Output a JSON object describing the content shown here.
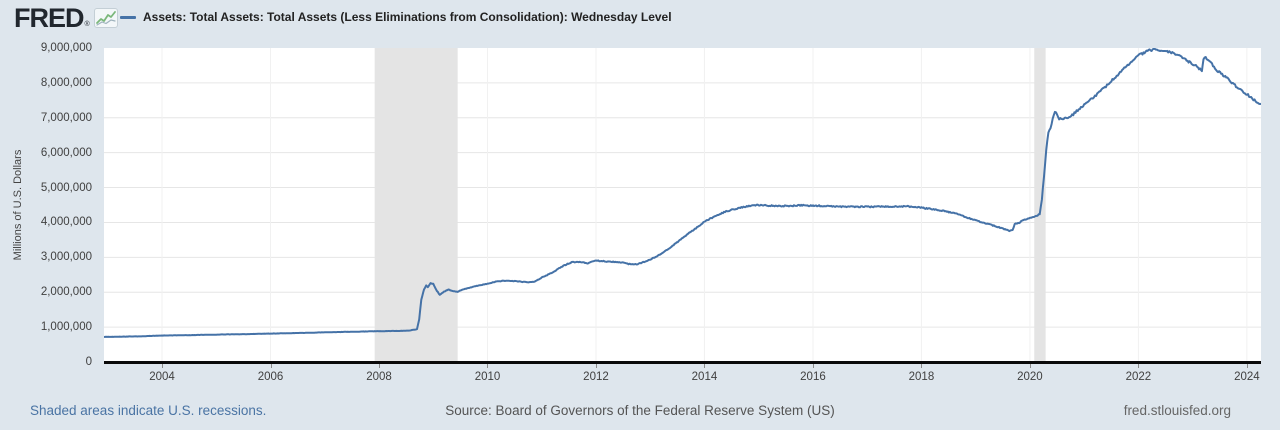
{
  "header": {
    "logo_text": "FRED",
    "logo_reg": "®",
    "series_label": "Assets: Total Assets: Total Assets (Less Eliminations from Consolidation): Wednesday Level"
  },
  "footer": {
    "recession_note": "Shaded areas indicate U.S. recessions.",
    "source": "Source: Board of Governors of the Federal Reserve System (US)",
    "site": "fred.stlouisfed.org"
  },
  "colors": {
    "page_background": "#dee6ed",
    "plot_background": "#ffffff",
    "line": "#4572a7",
    "gridline": "#e6e6e6",
    "vertical_gridline": "#f1f1f1",
    "recession_band": "#e4e4e4",
    "axis": "#0a0a0a",
    "logo_sparkline": "#7ab77a"
  },
  "chart_data": {
    "type": "line",
    "title": "Assets: Total Assets: Total Assets (Less Eliminations from Consolidation): Wednesday Level",
    "xlabel": "",
    "ylabel": "Millions of U.S. Dollars",
    "legend_position": "top-left",
    "grid": true,
    "xlim": [
      2002.93,
      2024.26
    ],
    "ylim": [
      0,
      9000000
    ],
    "x_ticks": [
      2004,
      2006,
      2008,
      2010,
      2012,
      2014,
      2016,
      2018,
      2020,
      2022,
      2024
    ],
    "y_ticks": [
      0,
      1000000,
      2000000,
      3000000,
      4000000,
      5000000,
      6000000,
      7000000,
      8000000,
      9000000
    ],
    "recessions": [
      [
        2007.92,
        2009.45
      ],
      [
        2020.08,
        2020.29
      ]
    ],
    "series": [
      {
        "name": "Assets: Total Assets: Total Assets (Less Eliminations from Consolidation): Wednesday Level",
        "units": "Millions of U.S. Dollars",
        "points": [
          [
            2002.93,
            719000
          ],
          [
            2003.2,
            725000
          ],
          [
            2003.6,
            735000
          ],
          [
            2004.0,
            758000
          ],
          [
            2004.5,
            770000
          ],
          [
            2005.0,
            786000
          ],
          [
            2005.5,
            797000
          ],
          [
            2006.0,
            815000
          ],
          [
            2006.5,
            830000
          ],
          [
            2007.0,
            852000
          ],
          [
            2007.5,
            865000
          ],
          [
            2008.0,
            885000
          ],
          [
            2008.3,
            890000
          ],
          [
            2008.55,
            900000
          ],
          [
            2008.7,
            940000
          ],
          [
            2008.74,
            1220000
          ],
          [
            2008.78,
            1780000
          ],
          [
            2008.83,
            2080000
          ],
          [
            2008.87,
            2200000
          ],
          [
            2008.9,
            2150000
          ],
          [
            2008.95,
            2260000
          ],
          [
            2009.0,
            2240000
          ],
          [
            2009.05,
            2080000
          ],
          [
            2009.12,
            1920000
          ],
          [
            2009.2,
            2020000
          ],
          [
            2009.28,
            2080000
          ],
          [
            2009.35,
            2030000
          ],
          [
            2009.45,
            2010000
          ],
          [
            2009.55,
            2080000
          ],
          [
            2009.65,
            2120000
          ],
          [
            2009.8,
            2180000
          ],
          [
            2010.0,
            2240000
          ],
          [
            2010.15,
            2300000
          ],
          [
            2010.3,
            2330000
          ],
          [
            2010.5,
            2320000
          ],
          [
            2010.7,
            2290000
          ],
          [
            2010.85,
            2290000
          ],
          [
            2011.0,
            2420000
          ],
          [
            2011.2,
            2570000
          ],
          [
            2011.4,
            2760000
          ],
          [
            2011.55,
            2860000
          ],
          [
            2011.7,
            2870000
          ],
          [
            2011.85,
            2830000
          ],
          [
            2012.0,
            2910000
          ],
          [
            2012.2,
            2880000
          ],
          [
            2012.45,
            2860000
          ],
          [
            2012.6,
            2810000
          ],
          [
            2012.75,
            2800000
          ],
          [
            2012.85,
            2850000
          ],
          [
            2012.95,
            2900000
          ],
          [
            2013.1,
            3010000
          ],
          [
            2013.3,
            3200000
          ],
          [
            2013.6,
            3560000
          ],
          [
            2013.9,
            3900000
          ],
          [
            2014.0,
            4030000
          ],
          [
            2014.2,
            4180000
          ],
          [
            2014.4,
            4320000
          ],
          [
            2014.6,
            4400000
          ],
          [
            2014.8,
            4470000
          ],
          [
            2015.0,
            4500000
          ],
          [
            2015.2,
            4480000
          ],
          [
            2015.5,
            4470000
          ],
          [
            2015.8,
            4490000
          ],
          [
            2016.0,
            4480000
          ],
          [
            2016.3,
            4470000
          ],
          [
            2016.6,
            4450000
          ],
          [
            2017.0,
            4450000
          ],
          [
            2017.4,
            4460000
          ],
          [
            2017.75,
            4460000
          ],
          [
            2018.0,
            4420000
          ],
          [
            2018.3,
            4360000
          ],
          [
            2018.6,
            4270000
          ],
          [
            2019.0,
            4060000
          ],
          [
            2019.2,
            3970000
          ],
          [
            2019.45,
            3850000
          ],
          [
            2019.62,
            3765000
          ],
          [
            2019.68,
            3780000
          ],
          [
            2019.72,
            3950000
          ],
          [
            2019.8,
            3990000
          ],
          [
            2019.88,
            4060000
          ],
          [
            2019.96,
            4120000
          ],
          [
            2020.06,
            4160000
          ],
          [
            2020.12,
            4170000
          ],
          [
            2020.18,
            4240000
          ],
          [
            2020.22,
            4670000
          ],
          [
            2020.26,
            5300000
          ],
          [
            2020.3,
            6080000
          ],
          [
            2020.34,
            6570000
          ],
          [
            2020.38,
            6720000
          ],
          [
            2020.42,
            6960000
          ],
          [
            2020.46,
            7170000
          ],
          [
            2020.5,
            7100000
          ],
          [
            2020.54,
            6970000
          ],
          [
            2020.6,
            6960000
          ],
          [
            2020.7,
            7010000
          ],
          [
            2020.8,
            7100000
          ],
          [
            2020.9,
            7250000
          ],
          [
            2021.0,
            7370000
          ],
          [
            2021.2,
            7620000
          ],
          [
            2021.4,
            7900000
          ],
          [
            2021.6,
            8200000
          ],
          [
            2021.8,
            8500000
          ],
          [
            2022.0,
            8780000
          ],
          [
            2022.15,
            8900000
          ],
          [
            2022.28,
            8965000
          ],
          [
            2022.4,
            8930000
          ],
          [
            2022.55,
            8890000
          ],
          [
            2022.7,
            8820000
          ],
          [
            2022.85,
            8680000
          ],
          [
            2023.0,
            8550000
          ],
          [
            2023.1,
            8440000
          ],
          [
            2023.17,
            8360000
          ],
          [
            2023.2,
            8690000
          ],
          [
            2023.24,
            8730000
          ],
          [
            2023.3,
            8650000
          ],
          [
            2023.45,
            8350000
          ],
          [
            2023.6,
            8180000
          ],
          [
            2023.8,
            7900000
          ],
          [
            2024.0,
            7680000
          ],
          [
            2024.1,
            7550000
          ],
          [
            2024.2,
            7440000
          ],
          [
            2024.26,
            7400000
          ]
        ]
      }
    ]
  }
}
